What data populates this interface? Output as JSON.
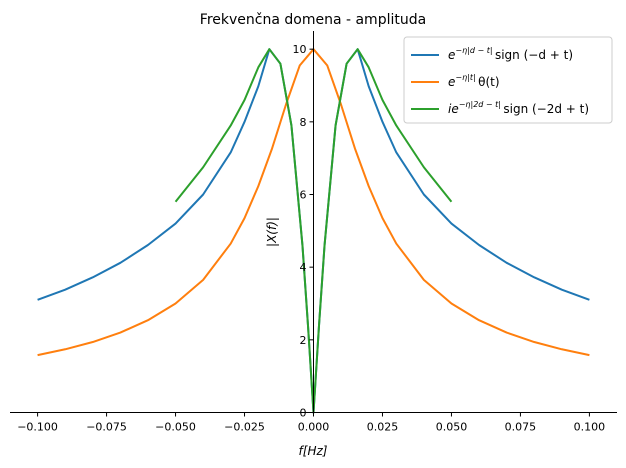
{
  "chart_data": {
    "type": "line",
    "title": "Frekvenčna domena - amplituda",
    "xlabel": "f[Hz]",
    "ylabel": "|X(f)|",
    "xlim": [
      -0.11,
      0.11
    ],
    "ylim": [
      0,
      10.5
    ],
    "xticks": [
      -0.1,
      -0.075,
      -0.05,
      -0.025,
      0.0,
      0.025,
      0.05,
      0.075,
      0.1
    ],
    "xtick_labels": [
      "−0.100",
      "−0.075",
      "−0.050",
      "−0.025",
      "0.000",
      "0.025",
      "0.050",
      "0.075",
      "0.100"
    ],
    "yticks": [
      0,
      2,
      4,
      6,
      8,
      10
    ],
    "ytick_labels": [
      "0",
      "2",
      "4",
      "6",
      "8",
      "10"
    ],
    "grid": false,
    "legend_position": "top-right",
    "series": [
      {
        "name": "e^{−η|d−t|} sign(−d+t)",
        "legend_parts": {
          "base": "e",
          "sup": "−η|d − t|",
          "rest": "sign (−d + t)"
        },
        "color": "#1f77b4",
        "x": [
          -0.1,
          -0.09,
          -0.08,
          -0.07,
          -0.06,
          -0.05,
          -0.04,
          -0.03,
          -0.025,
          -0.02,
          -0.016,
          -0.012,
          -0.008,
          -0.004,
          -0.002,
          0.0,
          0.002,
          0.004,
          0.008,
          0.012,
          0.016,
          0.02,
          0.025,
          0.03,
          0.04,
          0.05,
          0.06,
          0.07,
          0.08,
          0.09,
          0.1
        ],
        "y": [
          3.1,
          3.38,
          3.72,
          4.12,
          4.61,
          5.2,
          6.0,
          7.16,
          8.0,
          8.98,
          10.0,
          9.6,
          7.9,
          4.6,
          2.4,
          0.0,
          2.4,
          4.6,
          7.9,
          9.6,
          10.0,
          8.98,
          8.0,
          7.16,
          6.0,
          5.2,
          4.61,
          4.12,
          3.72,
          3.38,
          3.1
        ]
      },
      {
        "name": "e^{−η|t|} θ(t)",
        "legend_parts": {
          "base": "e",
          "sup": "−η|t|",
          "rest": "θ(t)"
        },
        "color": "#ff7f0e",
        "x": [
          -0.1,
          -0.09,
          -0.08,
          -0.07,
          -0.06,
          -0.05,
          -0.04,
          -0.03,
          -0.025,
          -0.02,
          -0.015,
          -0.01,
          -0.005,
          0.0,
          0.005,
          0.01,
          0.015,
          0.02,
          0.025,
          0.03,
          0.04,
          0.05,
          0.06,
          0.07,
          0.08,
          0.09,
          0.1
        ],
        "y": [
          1.58,
          1.74,
          1.94,
          2.2,
          2.54,
          3.0,
          3.65,
          4.65,
          5.35,
          6.23,
          7.27,
          8.47,
          9.55,
          10.0,
          9.55,
          8.47,
          7.27,
          6.23,
          5.35,
          4.65,
          3.65,
          3.0,
          2.54,
          2.2,
          1.94,
          1.74,
          1.58
        ]
      },
      {
        "name": "ie^{−η|2d−t|} sign(−2d+t)",
        "legend_parts": {
          "base": "ie",
          "sup": "−η|2d − t|",
          "rest": "sign (−2d + t)"
        },
        "color": "#2ca02c",
        "x": [
          -0.05,
          -0.04,
          -0.03,
          -0.025,
          -0.02,
          -0.016,
          -0.012,
          -0.008,
          -0.004,
          -0.002,
          0.0,
          0.002,
          0.004,
          0.008,
          0.012,
          0.016,
          0.02,
          0.025,
          0.03,
          0.04,
          0.05
        ],
        "y": [
          5.8,
          6.75,
          7.9,
          8.6,
          9.5,
          10.0,
          9.6,
          7.9,
          4.6,
          2.4,
          0.0,
          2.4,
          4.6,
          7.9,
          9.6,
          10.0,
          9.5,
          8.6,
          7.9,
          6.75,
          5.8
        ]
      }
    ]
  }
}
